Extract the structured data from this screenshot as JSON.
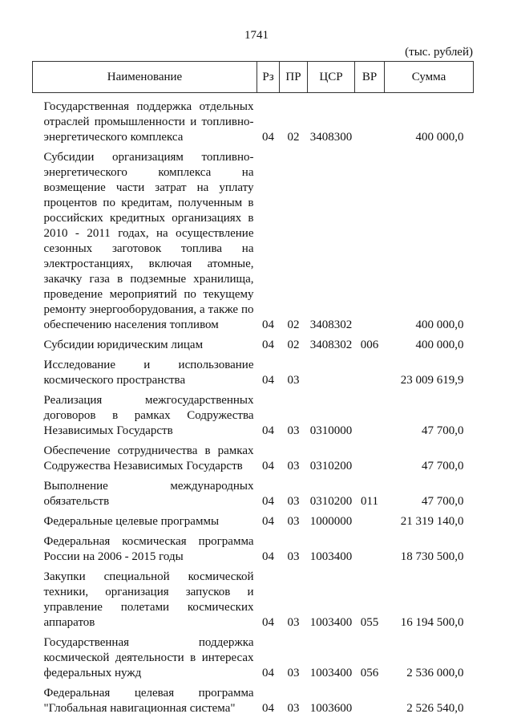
{
  "page_number": "1741",
  "units": "(тыс. рублей)",
  "headers": {
    "name": "Наименование",
    "rz": "Рз",
    "pr": "ПР",
    "csr": "ЦСР",
    "vr": "ВР",
    "sum": "Сумма"
  },
  "rows": [
    {
      "name": "Государственная поддержка отдельных отраслей промышленности и топливно-энергетического комплекса",
      "rz": "04",
      "pr": "02",
      "csr": "3408300",
      "vr": "",
      "sum": "400 000,0"
    },
    {
      "name": "Субсидии организациям топливно-энергетического комплекса на возмещение части затрат на уплату процентов по кредитам, полученным в российских кредитных организациях в 2010 - 2011 годах, на осуществление сезонных заготовок топлива на электростанциях, включая атомные, закачку газа в подземные хранилища, проведение мероприятий по текущему ремонту энергооборудования, а также по обеспечению населения топливом",
      "rz": "04",
      "pr": "02",
      "csr": "3408302",
      "vr": "",
      "sum": "400 000,0"
    },
    {
      "name": "Субсидии юридическим лицам",
      "rz": "04",
      "pr": "02",
      "csr": "3408302",
      "vr": "006",
      "sum": "400 000,0"
    },
    {
      "name": "Исследование и использование космического пространства",
      "rz": "04",
      "pr": "03",
      "csr": "",
      "vr": "",
      "sum": "23 009 619,9"
    },
    {
      "name": "Реализация межгосударственных договоров в рамках Содружества Независимых Государств",
      "rz": "04",
      "pr": "03",
      "csr": "0310000",
      "vr": "",
      "sum": "47 700,0"
    },
    {
      "name": "Обеспечение сотрудничества в рамках Содружества Независимых Государств",
      "rz": "04",
      "pr": "03",
      "csr": "0310200",
      "vr": "",
      "sum": "47 700,0"
    },
    {
      "name": "Выполнение международных обязательств",
      "rz": "04",
      "pr": "03",
      "csr": "0310200",
      "vr": "011",
      "sum": "47 700,0"
    },
    {
      "name": "Федеральные целевые программы",
      "rz": "04",
      "pr": "03",
      "csr": "1000000",
      "vr": "",
      "sum": "21 319 140,0"
    },
    {
      "name": "Федеральная космическая программа России на 2006 - 2015 годы",
      "rz": "04",
      "pr": "03",
      "csr": "1003400",
      "vr": "",
      "sum": "18 730 500,0"
    },
    {
      "name": "Закупки специальной космической техники, организация запусков и управление полетами космических аппаратов",
      "rz": "04",
      "pr": "03",
      "csr": "1003400",
      "vr": "055",
      "sum": "16 194 500,0"
    },
    {
      "name": "Государственная поддержка космической деятельности в интересах федеральных нужд",
      "rz": "04",
      "pr": "03",
      "csr": "1003400",
      "vr": "056",
      "sum": "2 536 000,0"
    },
    {
      "name": "Федеральная целевая программа \"Глобальная навигационная система\"",
      "rz": "04",
      "pr": "03",
      "csr": "1003600",
      "vr": "",
      "sum": "2 526 540,0"
    }
  ]
}
